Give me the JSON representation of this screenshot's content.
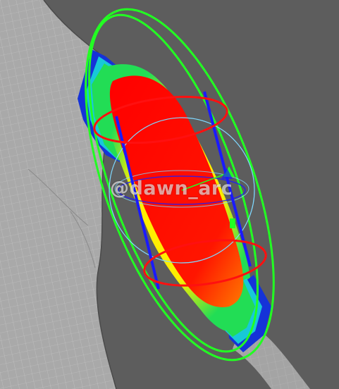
{
  "viewport": {
    "background_color": "#5d5d5d",
    "mesh_color": "#a9a9a9",
    "wireframe_color": "#c8c8c8"
  },
  "weight_map": {
    "colors": [
      "#ff0000",
      "#ff8a00",
      "#ffff00",
      "#22dd55",
      "#18c8d8",
      "#1533d8"
    ]
  },
  "manipulators": {
    "capsule_color": "#22ff22",
    "ring_color": "#ff1010",
    "axis_color": "#1a1aff",
    "sphere_color": "#7fd8ff"
  },
  "watermark": {
    "text": "@dawn_arc"
  }
}
